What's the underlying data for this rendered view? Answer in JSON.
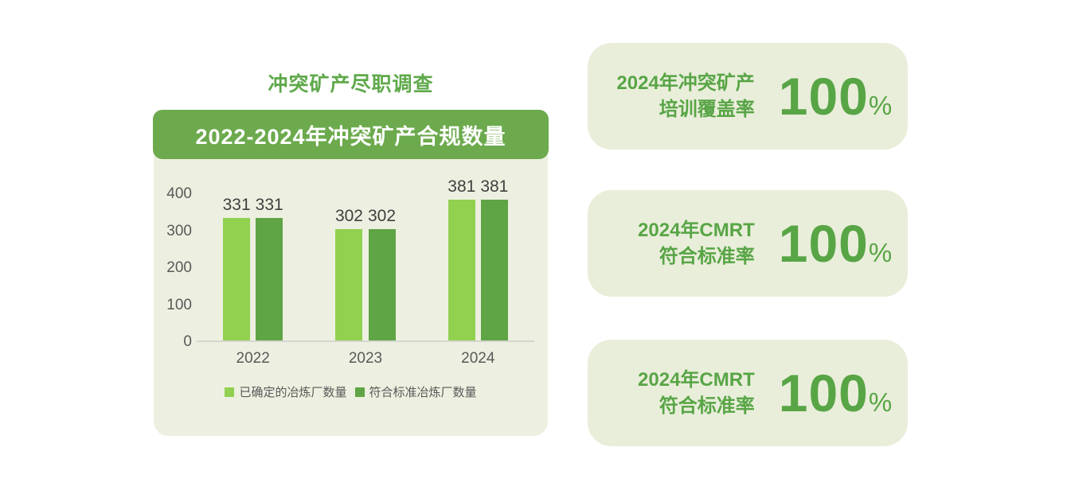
{
  "page_title": "冲突矿产尽职调查",
  "left_panel": {
    "header": "2022-2024年冲突矿产合规数量"
  },
  "chart_data": {
    "type": "bar",
    "title": "2022-2024年冲突矿产合规数量",
    "categories": [
      "2022",
      "2023",
      "2024"
    ],
    "series": [
      {
        "name": "已确定的冶炼厂数量",
        "color": "#92d050",
        "values": [
          331,
          302,
          381
        ]
      },
      {
        "name": "符合标准冶炼厂数量",
        "color": "#5fa445",
        "values": [
          331,
          302,
          381
        ]
      }
    ],
    "ylim": [
      0,
      400
    ],
    "yticks": [
      0,
      100,
      200,
      300,
      400
    ],
    "grid": false,
    "data_labels": true,
    "legend_position": "bottom"
  },
  "cards": [
    {
      "label_line1": "2024年冲突矿产",
      "label_line2": "培训覆盖率",
      "value": "100",
      "unit": "%"
    },
    {
      "label_line1": "2024年CMRT",
      "label_line2": "符合标准率",
      "value": "100",
      "unit": "%"
    },
    {
      "label_line1": "2024年CMRT",
      "label_line2": "符合标准率",
      "value": "100",
      "unit": "%"
    }
  ],
  "colors": {
    "title_green": "#5fa94b",
    "header_bg": "#6caa4d",
    "panel_bg": "#edf0e0",
    "card_bg": "#e9eeda",
    "card_text": "#58a546",
    "bar_light": "#92d050",
    "bar_dark": "#5fa445",
    "axis_text": "#595959",
    "data_label_text": "#3f3f3f"
  }
}
